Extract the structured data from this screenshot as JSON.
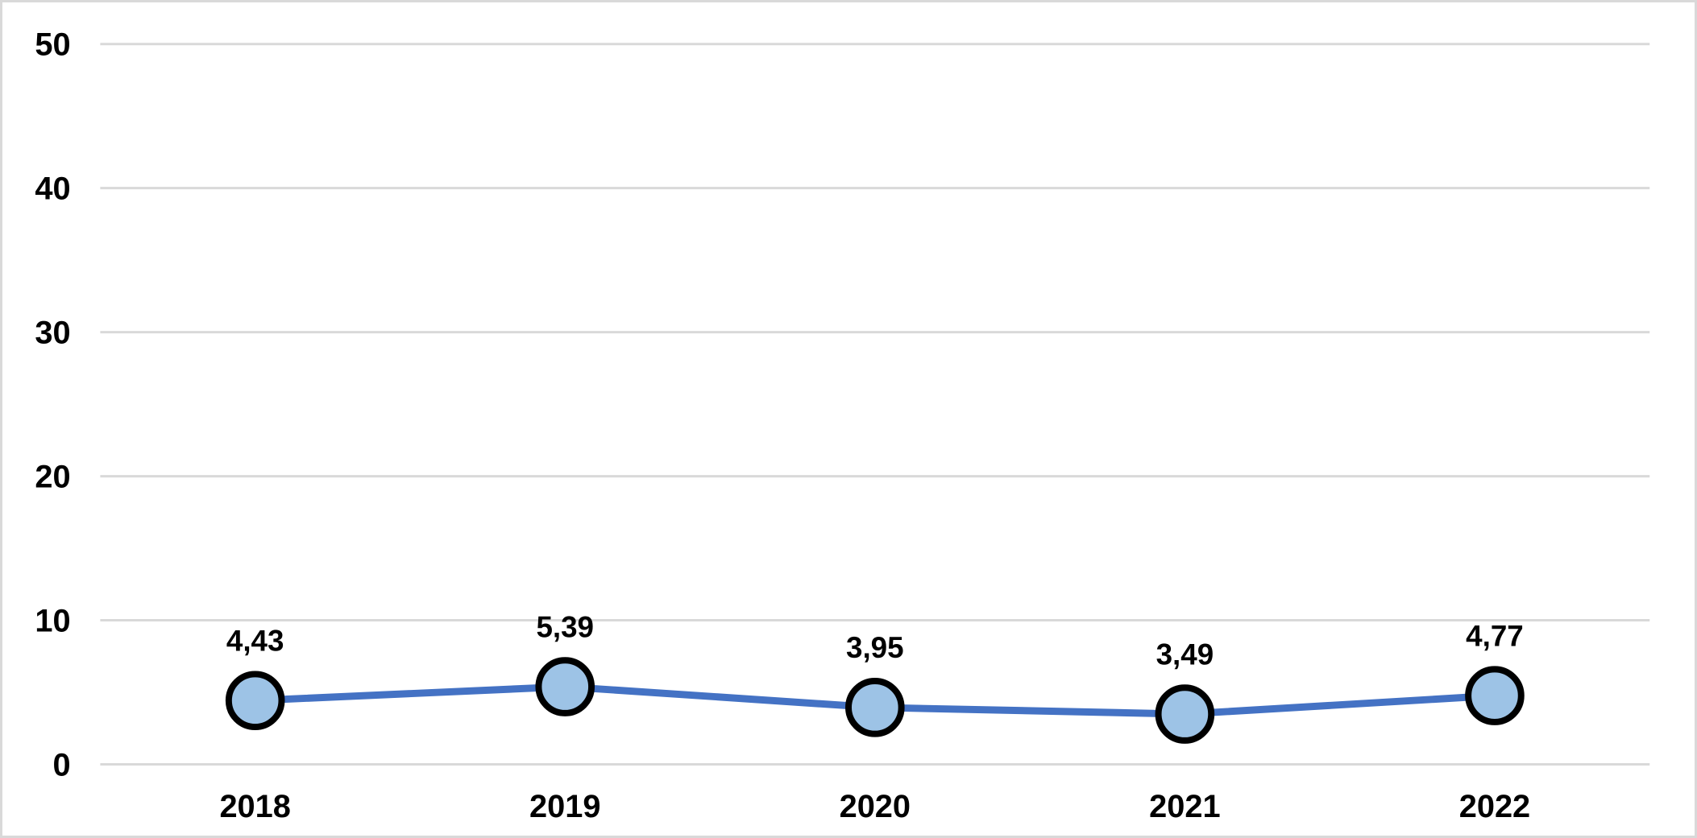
{
  "chart_data": {
    "type": "line",
    "title": "",
    "categories": [
      "2018",
      "2019",
      "2020",
      "2021",
      "2022"
    ],
    "series": [
      {
        "name": "",
        "values": [
          4.43,
          5.39,
          3.95,
          3.49,
          4.77
        ],
        "value_labels": [
          "4,43",
          "5,39",
          "3,95",
          "3,49",
          "4,77"
        ]
      }
    ],
    "xlabel": "",
    "ylabel": "",
    "ylim": [
      0,
      50
    ],
    "yticks": {
      "values": [
        0,
        10,
        20,
        30,
        40,
        50
      ],
      "labels": [
        "0",
        "10",
        "20",
        "30",
        "40",
        "50"
      ]
    },
    "grid": true,
    "legend_position": "none",
    "colors": {
      "line": "#4472C4",
      "marker_fill": "#9DC3E6",
      "marker_stroke": "#000000",
      "gridline": "#D9D9D9",
      "frame_border": "#D9D9D9",
      "text": "#000000",
      "background": "#FFFFFF"
    }
  }
}
